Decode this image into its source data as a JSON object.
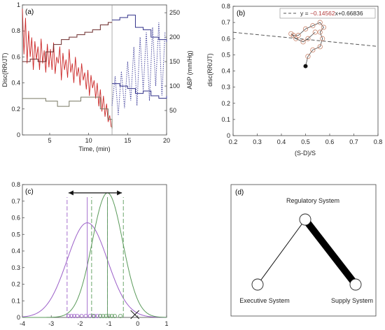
{
  "chart_data": [
    {
      "panel": "(a)",
      "type": "line",
      "xlabel": "Time, (min)",
      "ylabel": "Disc(RR/JT)",
      "y2label": "ABP (mm/Hg)",
      "xlim": [
        1.5,
        20
      ],
      "ylim": [
        0,
        1
      ],
      "y2lim": [
        0,
        266
      ],
      "xticks": [
        "5",
        "10",
        "15",
        "20"
      ],
      "xtick_values": [
        5,
        10,
        15,
        20
      ],
      "yticks": [
        "0",
        "0.2",
        "0.4",
        "0.6",
        "0.8",
        "1"
      ],
      "ytick_values": [
        0,
        0.2,
        0.4,
        0.6,
        0.8,
        1
      ],
      "y2ticks": [
        "50",
        "100",
        "150",
        "200",
        "250"
      ],
      "y2tick_values": [
        50,
        100,
        150,
        200,
        250
      ],
      "vline_x": 13,
      "series": [
        {
          "role": "disc-red",
          "color": "#cc2a2a",
          "x": [
            1.5,
            1.7,
            1.9,
            2.1,
            2.3,
            2.5,
            2.7,
            2.9,
            3.1,
            3.3,
            3.5,
            3.7,
            3.9,
            4.1,
            4.3,
            4.5,
            4.7,
            4.9,
            5.1,
            5.3,
            5.5,
            5.7,
            5.9,
            6.1,
            6.3,
            6.5,
            6.7,
            6.9,
            7.1,
            7.3,
            7.5,
            7.7,
            7.9,
            8.1,
            8.3,
            8.5,
            8.7,
            8.9,
            9.1,
            9.3,
            9.5,
            9.7,
            9.9,
            10.1,
            10.3,
            10.5,
            10.7,
            10.9,
            11.1,
            11.3,
            11.5,
            11.7,
            11.9,
            12.1,
            12.3,
            12.5,
            12.7,
            12.9
          ],
          "y": [
            0.97,
            0.62,
            0.9,
            0.55,
            0.8,
            0.6,
            0.75,
            0.5,
            0.72,
            0.58,
            0.68,
            0.5,
            0.74,
            0.55,
            0.65,
            0.48,
            0.7,
            0.52,
            0.66,
            0.5,
            0.71,
            0.47,
            0.6,
            0.55,
            0.68,
            0.42,
            0.63,
            0.5,
            0.58,
            0.44,
            0.66,
            0.48,
            0.55,
            0.4,
            0.6,
            0.45,
            0.52,
            0.38,
            0.55,
            0.42,
            0.48,
            0.35,
            0.5,
            0.3,
            0.46,
            0.36,
            0.42,
            0.28,
            0.4,
            0.22,
            0.35,
            0.18,
            0.3,
            0.14,
            0.24,
            0.1,
            0.15,
            0.06
          ]
        },
        {
          "role": "disc-grey-step",
          "color": "#7a7a66",
          "x": [
            1.5,
            3,
            4.5,
            6,
            7.5,
            9,
            10.5,
            11.5,
            12.5,
            13
          ],
          "y": [
            0.28,
            0.28,
            0.26,
            0.22,
            0.26,
            0.29,
            0.29,
            0.2,
            0.12,
            0.05
          ]
        },
        {
          "role": "abp-dark-red-step",
          "color": "#6b2a2a",
          "x": [
            1.5,
            2.5,
            3.5,
            4.5,
            5.5,
            6.5,
            7.5,
            8.5,
            9.5,
            10.5,
            11.5,
            12.5,
            13
          ],
          "y": [
            150,
            155,
            150,
            170,
            185,
            195,
            200,
            205,
            210,
            215,
            225,
            230,
            230
          ]
        },
        {
          "role": "abp-blue-step",
          "color": "#33338a",
          "x": [
            13,
            14,
            15,
            16,
            17,
            18,
            19,
            20
          ],
          "y": [
            235,
            240,
            245,
            220,
            215,
            200,
            195,
            190
          ]
        },
        {
          "role": "abp-blue-lower-step",
          "color": "#33338a",
          "x": [
            13,
            14,
            15,
            16,
            17,
            18,
            19,
            20
          ],
          "y": [
            105,
            100,
            95,
            85,
            90,
            80,
            75,
            80
          ]
        },
        {
          "role": "abp-dotted",
          "color": "#4a4aa0",
          "x": [
            13,
            13.4,
            13.8,
            14.2,
            14.6,
            15,
            15.4,
            15.8,
            16.2,
            16.6,
            17,
            17.4,
            17.8,
            18.2,
            18.6,
            19,
            19.4,
            19.8
          ],
          "y": [
            60,
            120,
            40,
            130,
            55,
            150,
            70,
            180,
            60,
            200,
            90,
            210,
            70,
            220,
            100,
            230,
            80,
            210
          ]
        }
      ]
    },
    {
      "panel": "(b)",
      "type": "scatter",
      "xlabel": "(S-D)/S",
      "ylabel": "disc(RR/JT)",
      "xlim": [
        0.2,
        0.8
      ],
      "ylim": [
        0,
        0.8
      ],
      "xticks": [
        "0.2",
        "0.3",
        "0.4",
        "0.5",
        "0.6",
        "0.7",
        "0.8"
      ],
      "xtick_values": [
        0.2,
        0.3,
        0.4,
        0.5,
        0.6,
        0.7,
        0.8
      ],
      "yticks": [
        "0",
        "0.1",
        "0.2",
        "0.3",
        "0.4",
        "0.5",
        "0.6",
        "0.7",
        "0.8"
      ],
      "ytick_values": [
        0,
        0.1,
        0.2,
        0.3,
        0.4,
        0.5,
        0.6,
        0.7,
        0.8
      ],
      "legend": {
        "prefix": "y = ",
        "coef": "−0.14562",
        "suffix": "x+0.66836",
        "placement": "top-right"
      },
      "fit": {
        "slope": -0.14562,
        "intercept": 0.66836
      },
      "points": {
        "x": [
          0.5,
          0.51,
          0.53,
          0.56,
          0.57,
          0.56,
          0.575,
          0.56,
          0.53,
          0.5,
          0.47,
          0.45,
          0.44,
          0.46,
          0.49,
          0.51,
          0.54
        ],
        "y": [
          0.43,
          0.49,
          0.53,
          0.55,
          0.6,
          0.64,
          0.67,
          0.7,
          0.68,
          0.66,
          0.62,
          0.62,
          0.63,
          0.6,
          0.58,
          0.6,
          0.64
        ]
      },
      "start_point": {
        "x": 0.5,
        "y": 0.43
      }
    },
    {
      "panel": "(c)",
      "type": "line",
      "xlim": [
        -4,
        1
      ],
      "ylim": [
        0,
        0.8
      ],
      "xticks": [
        "-4",
        "-3",
        "-2",
        "-1",
        "0",
        "1"
      ],
      "xtick_values": [
        -4,
        -3,
        -2,
        -1,
        0,
        1
      ],
      "yticks": [
        "0",
        "0.1",
        "0.2",
        "0.3",
        "0.4",
        "0.5",
        "0.6",
        "0.7",
        "0.8"
      ],
      "ytick_values": [
        0,
        0.1,
        0.2,
        0.3,
        0.4,
        0.5,
        0.6,
        0.7,
        0.8
      ],
      "series": [
        {
          "role": "purple-gaussian",
          "color": "#9b5fc8",
          "mean": -1.75,
          "sd": 0.7,
          "peak": 0.57
        },
        {
          "role": "green-gaussian",
          "color": "#5a9a5a",
          "mean": -1.05,
          "sd": 0.53,
          "peak": 0.75
        }
      ],
      "purple_dashed": [
        -2.45,
        -1.05
      ],
      "purple_solid": -1.75,
      "green_dashed": [
        -1.6,
        -0.5
      ],
      "green_solid": -1.05,
      "arrow": {
        "from": -2.4,
        "to": -0.55,
        "y": 0.75
      },
      "purple_marks": [
        -2.4,
        -2.3,
        -2.2,
        -2.1,
        -1.95,
        -1.8,
        -1.65,
        -1.5,
        -1.4,
        -1.3
      ],
      "green_marks": [
        -1.55,
        -1.3,
        -1.2,
        -1.1,
        -1.0,
        -0.9,
        -0.8,
        -0.6
      ],
      "cross_x": -0.1
    },
    {
      "panel": "(d)",
      "type": "diagram",
      "nodes": [
        {
          "id": "regulatory",
          "label": "Regulatory System"
        },
        {
          "id": "executive",
          "label": "Executive System"
        },
        {
          "id": "supply",
          "label": "Supply System"
        }
      ],
      "edges": [
        {
          "from": "regulatory",
          "to": "executive",
          "weight": "thin"
        },
        {
          "from": "regulatory",
          "to": "supply",
          "weight": "thick"
        }
      ]
    }
  ]
}
